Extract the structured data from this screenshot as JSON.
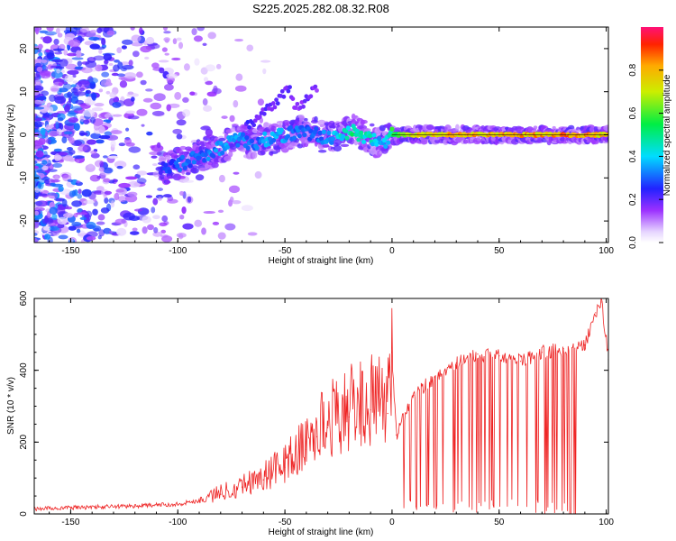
{
  "title": "S225.2025.282.08.32.R08",
  "colors": {
    "snr_line": "#ee2222",
    "axis": "#000000",
    "ridge": "#111111"
  },
  "chart_data": [
    {
      "type": "heatmap",
      "xlabel": "Height of straight line (km)",
      "ylabel": "Frequency (Hz)",
      "xlim": [
        -167,
        101
      ],
      "ylim": [
        -25,
        25
      ],
      "xticks": [
        -150,
        -100,
        -50,
        0,
        50,
        100
      ],
      "yticks": [
        -20,
        -10,
        0,
        10,
        20
      ],
      "colorbar": {
        "label": "Normalized spectral amplitude",
        "range": [
          0,
          1
        ],
        "ticks": [
          0.0,
          0.2,
          0.4,
          0.6,
          0.8
        ],
        "tick_labels": [
          "0.0",
          "0.2",
          "0.4",
          "0.6",
          "0.8"
        ]
      },
      "ridge": {
        "x": [
          -108,
          -100,
          -90,
          -80,
          -72,
          -65,
          -58,
          -50,
          -42,
          -35,
          -28,
          -22,
          -18,
          -15,
          -10,
          -5,
          -2,
          0,
          10,
          30,
          50,
          70,
          85,
          95,
          100
        ],
        "y": [
          -8,
          -7,
          -5,
          -3,
          -1,
          -2,
          -1,
          0,
          1,
          0,
          -1,
          0,
          1,
          0,
          -1,
          -2,
          -1,
          0,
          0,
          0,
          0,
          0,
          0,
          0,
          0
        ],
        "amplitude": [
          0.25,
          0.3,
          0.3,
          0.35,
          0.35,
          0.3,
          0.35,
          0.35,
          0.3,
          0.3,
          0.35,
          0.45,
          0.5,
          0.45,
          0.45,
          0.35,
          0.4,
          0.55,
          0.75,
          0.8,
          0.8,
          0.8,
          0.85,
          0.8,
          0.75
        ]
      },
      "secondary_ridge": {
        "x": [
          -68,
          -62,
          -58,
          -55,
          -52,
          -48,
          -45,
          -40,
          -37,
          -35
        ],
        "y": [
          2,
          4,
          6,
          7,
          9,
          11,
          6,
          8,
          10,
          11
        ],
        "amplitude": [
          0.25,
          0.2,
          0.2,
          0.2,
          0.2,
          0.2,
          0.15,
          0.2,
          0.2,
          0.15
        ]
      }
    },
    {
      "type": "line",
      "xlabel": "Height of straight line (km)",
      "ylabel": "SNR (10 * v/v)",
      "xlim": [
        -167,
        101
      ],
      "ylim": [
        0,
        600
      ],
      "xticks": [
        -150,
        -100,
        -50,
        0,
        50,
        100
      ],
      "yticks": [
        0,
        200,
        400,
        600
      ],
      "series": [
        {
          "name": "SNR",
          "x": [
            -167,
            -150,
            -120,
            -100,
            -90,
            -80,
            -70,
            -60,
            -50,
            -40,
            -35,
            -30,
            -20,
            -10,
            -2,
            0,
            2,
            10,
            20,
            30,
            40,
            50,
            60,
            70,
            80,
            90,
            95,
            98,
            101
          ],
          "y": [
            12,
            15,
            20,
            25,
            35,
            55,
            75,
            95,
            130,
            180,
            215,
            240,
            270,
            290,
            280,
            450,
            220,
            330,
            380,
            420,
            445,
            440,
            425,
            450,
            460,
            470,
            560,
            590,
            430
          ]
        }
      ]
    }
  ]
}
